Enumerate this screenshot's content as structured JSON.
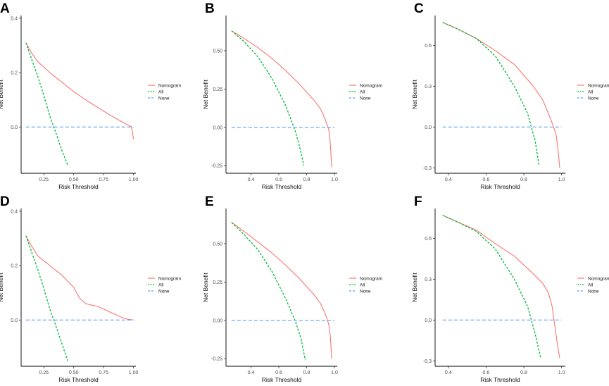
{
  "figure": {
    "legend_labels": [
      "Nomogram",
      "All",
      "None"
    ],
    "colors": {
      "Nomogram": "#f8766d",
      "All": "#00ba38",
      "None": "#619cff"
    }
  },
  "chart_data": [
    {
      "panel": "A",
      "type": "line",
      "title": "",
      "xlabel": "Risk Threshold",
      "ylabel": "Net Benefit",
      "xlim": [
        0.06,
        1.02
      ],
      "ylim": [
        -0.17,
        0.41
      ],
      "xticks": [
        0.25,
        0.5,
        0.75,
        1.0
      ],
      "xtick_labels": [
        "0.25",
        "0.50",
        "0.75",
        "1.00"
      ],
      "yticks": [
        0.0,
        0.2,
        0.4
      ],
      "ytick_labels": [
        "0.0",
        "0.2",
        "0.4"
      ],
      "grid": false,
      "legend_position": "right",
      "series": [
        {
          "name": "Nomogram",
          "x": [
            0.1,
            0.15,
            0.2,
            0.3,
            0.4,
            0.5,
            0.6,
            0.7,
            0.8,
            0.9,
            0.95,
            0.98,
            0.99,
            1.0
          ],
          "y": [
            0.31,
            0.27,
            0.24,
            0.2,
            0.165,
            0.13,
            0.1,
            0.072,
            0.045,
            0.02,
            0.008,
            0.002,
            -0.015,
            -0.045
          ]
        },
        {
          "name": "All",
          "x": [
            0.1,
            0.15,
            0.2,
            0.25,
            0.3,
            0.35,
            0.4,
            0.45
          ],
          "y": [
            0.31,
            0.247,
            0.185,
            0.115,
            0.04,
            -0.02,
            -0.085,
            -0.14
          ]
        },
        {
          "name": "None",
          "x": [
            0.1,
            1.0
          ],
          "y": [
            0.0,
            0.0
          ]
        }
      ]
    },
    {
      "panel": "B",
      "type": "line",
      "title": "",
      "xlabel": "Risk Threshold",
      "ylabel": "Net Benefit",
      "xlim": [
        0.22,
        1.02
      ],
      "ylim": [
        -0.3,
        0.73
      ],
      "xticks": [
        0.4,
        0.6,
        0.8,
        1.0
      ],
      "xtick_labels": [
        "0.4",
        "0.6",
        "0.8",
        "1.0"
      ],
      "yticks": [
        -0.25,
        0.0,
        0.25,
        0.5
      ],
      "ytick_labels": [
        "-0.25",
        "0.00",
        "0.25",
        "0.50"
      ],
      "grid": false,
      "legend_position": "right",
      "series": [
        {
          "name": "Nomogram",
          "x": [
            0.26,
            0.35,
            0.45,
            0.55,
            0.65,
            0.75,
            0.85,
            0.9,
            0.93,
            0.95,
            0.96,
            0.97,
            0.98
          ],
          "y": [
            0.63,
            0.58,
            0.52,
            0.45,
            0.37,
            0.28,
            0.18,
            0.12,
            0.06,
            0.01,
            -0.02,
            -0.1,
            -0.26
          ]
        },
        {
          "name": "All",
          "x": [
            0.26,
            0.35,
            0.45,
            0.55,
            0.65,
            0.72,
            0.75,
            0.78
          ],
          "y": [
            0.63,
            0.56,
            0.46,
            0.32,
            0.14,
            -0.03,
            -0.13,
            -0.25
          ]
        },
        {
          "name": "None",
          "x": [
            0.26,
            1.0
          ],
          "y": [
            0.0,
            0.0
          ]
        }
      ]
    },
    {
      "panel": "C",
      "type": "line",
      "title": "",
      "xlabel": "Risk Threshold",
      "ylabel": "Net Benefit",
      "xlim": [
        0.33,
        1.02
      ],
      "ylim": [
        -0.34,
        0.82
      ],
      "xticks": [
        0.4,
        0.6,
        0.8,
        1.0
      ],
      "xtick_labels": [
        "0.4",
        "0.6",
        "0.8",
        "1.0"
      ],
      "yticks": [
        -0.3,
        0.0,
        0.3,
        0.6
      ],
      "ytick_labels": [
        "-0.3",
        "0.0",
        "0.3",
        "0.6"
      ],
      "grid": false,
      "legend_position": "right",
      "series": [
        {
          "name": "Nomogram",
          "x": [
            0.37,
            0.45,
            0.55,
            0.65,
            0.75,
            0.85,
            0.9,
            0.93,
            0.95,
            0.97,
            0.98,
            0.99
          ],
          "y": [
            0.77,
            0.72,
            0.65,
            0.56,
            0.46,
            0.3,
            0.2,
            0.1,
            0.03,
            -0.05,
            -0.15,
            -0.3
          ]
        },
        {
          "name": "All",
          "x": [
            0.37,
            0.45,
            0.55,
            0.65,
            0.75,
            0.82,
            0.86,
            0.88
          ],
          "y": [
            0.77,
            0.72,
            0.65,
            0.52,
            0.3,
            0.1,
            -0.1,
            -0.28
          ]
        },
        {
          "name": "None",
          "x": [
            0.37,
            1.0
          ],
          "y": [
            0.0,
            0.0
          ]
        }
      ]
    },
    {
      "panel": "D",
      "type": "line",
      "title": "",
      "xlabel": "Risk Threshold",
      "ylabel": "Net Benefit",
      "xlim": [
        0.06,
        1.02
      ],
      "ylim": [
        -0.17,
        0.41
      ],
      "xticks": [
        0.25,
        0.5,
        0.75,
        1.0
      ],
      "xtick_labels": [
        "0.25",
        "0.50",
        "0.75",
        "1.00"
      ],
      "yticks": [
        0.0,
        0.2,
        0.4
      ],
      "ytick_labels": [
        "0.0",
        "0.2",
        "0.4"
      ],
      "grid": false,
      "legend_position": "right",
      "series": [
        {
          "name": "Nomogram",
          "x": [
            0.1,
            0.15,
            0.2,
            0.3,
            0.4,
            0.5,
            0.55,
            0.6,
            0.7,
            0.8,
            0.9,
            0.95,
            1.0
          ],
          "y": [
            0.31,
            0.27,
            0.235,
            0.2,
            0.165,
            0.12,
            0.08,
            0.06,
            0.05,
            0.03,
            0.01,
            0.003,
            0.0
          ]
        },
        {
          "name": "All",
          "x": [
            0.1,
            0.15,
            0.2,
            0.25,
            0.3,
            0.35,
            0.4,
            0.45
          ],
          "y": [
            0.31,
            0.247,
            0.185,
            0.115,
            0.04,
            -0.02,
            -0.085,
            -0.15
          ]
        },
        {
          "name": "None",
          "x": [
            0.1,
            1.0
          ],
          "y": [
            0.0,
            0.0
          ]
        }
      ]
    },
    {
      "panel": "E",
      "type": "line",
      "title": "",
      "xlabel": "Risk Threshold",
      "ylabel": "Net Benefit",
      "xlim": [
        0.22,
        1.02
      ],
      "ylim": [
        -0.3,
        0.73
      ],
      "xticks": [
        0.4,
        0.6,
        0.8,
        1.0
      ],
      "xtick_labels": [
        "0.4",
        "0.6",
        "0.8",
        "1.0"
      ],
      "yticks": [
        -0.25,
        0.0,
        0.25,
        0.5
      ],
      "ytick_labels": [
        "-0.25",
        "0.00",
        "0.25",
        "0.50"
      ],
      "grid": false,
      "legend_position": "right",
      "series": [
        {
          "name": "Nomogram",
          "x": [
            0.26,
            0.35,
            0.45,
            0.55,
            0.65,
            0.75,
            0.85,
            0.9,
            0.93,
            0.95,
            0.96,
            0.97,
            0.98
          ],
          "y": [
            0.64,
            0.58,
            0.51,
            0.44,
            0.36,
            0.27,
            0.17,
            0.11,
            0.05,
            0.0,
            -0.03,
            -0.1,
            -0.25
          ]
        },
        {
          "name": "All",
          "x": [
            0.26,
            0.35,
            0.45,
            0.55,
            0.65,
            0.72,
            0.76,
            0.79
          ],
          "y": [
            0.64,
            0.56,
            0.46,
            0.32,
            0.14,
            -0.01,
            -0.12,
            -0.26
          ]
        },
        {
          "name": "None",
          "x": [
            0.26,
            1.0
          ],
          "y": [
            0.0,
            0.0
          ]
        }
      ]
    },
    {
      "panel": "F",
      "type": "line",
      "title": "",
      "xlabel": "Risk Threshold",
      "ylabel": "Net Benefit",
      "xlim": [
        0.33,
        1.02
      ],
      "ylim": [
        -0.34,
        0.82
      ],
      "xticks": [
        0.4,
        0.6,
        0.8,
        1.0
      ],
      "xtick_labels": [
        "0.4",
        "0.6",
        "0.8",
        "1.0"
      ],
      "yticks": [
        -0.3,
        0.0,
        0.3,
        0.6
      ],
      "ytick_labels": [
        "-0.3",
        "0.0",
        "0.3",
        "0.6"
      ],
      "grid": false,
      "legend_position": "right",
      "series": [
        {
          "name": "Nomogram",
          "x": [
            0.37,
            0.45,
            0.55,
            0.65,
            0.75,
            0.85,
            0.9,
            0.93,
            0.95,
            0.96,
            0.97,
            0.98,
            0.99
          ],
          "y": [
            0.77,
            0.72,
            0.66,
            0.56,
            0.47,
            0.34,
            0.27,
            0.2,
            0.1,
            0.0,
            -0.1,
            -0.2,
            -0.28
          ]
        },
        {
          "name": "All",
          "x": [
            0.37,
            0.45,
            0.55,
            0.65,
            0.75,
            0.82,
            0.86,
            0.89
          ],
          "y": [
            0.77,
            0.72,
            0.65,
            0.52,
            0.3,
            0.1,
            -0.1,
            -0.28
          ]
        },
        {
          "name": "None",
          "x": [
            0.37,
            1.0
          ],
          "y": [
            0.0,
            0.0
          ]
        }
      ]
    }
  ]
}
